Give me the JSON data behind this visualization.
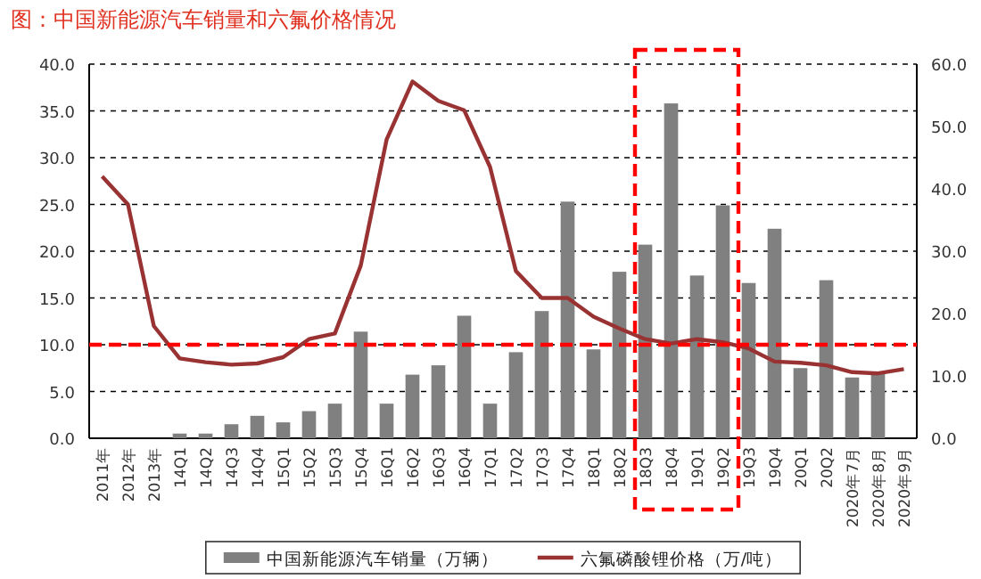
{
  "chart_data": {
    "type": "bar",
    "title": "图：中国新能源汽车销量和六氟价格情况",
    "categories": [
      "2011年",
      "2012年",
      "2013年",
      "14Q1",
      "14Q2",
      "14Q3",
      "14Q4",
      "15Q1",
      "15Q2",
      "15Q3",
      "15Q4",
      "16Q1",
      "16Q2",
      "16Q3",
      "16Q4",
      "17Q1",
      "17Q2",
      "17Q3",
      "17Q4",
      "18Q1",
      "18Q2",
      "18Q3",
      "18Q4",
      "19Q1",
      "19Q2",
      "19Q3",
      "19Q4",
      "20Q1",
      "20Q2",
      "2020年7月",
      "2020年8月",
      "2020年9月"
    ],
    "series": [
      {
        "name": "中国新能源汽车销量（万辆）",
        "color": "#808080",
        "values": [
          null,
          null,
          null,
          0.5,
          0.5,
          1.5,
          2.4,
          1.7,
          2.9,
          3.7,
          11.4,
          3.7,
          6.8,
          7.8,
          13.1,
          3.7,
          9.2,
          13.6,
          25.3,
          9.5,
          17.8,
          20.7,
          35.8,
          17.4,
          24.9,
          16.6,
          22.4,
          7.5,
          16.9,
          6.5,
          7.0,
          null
        ]
      },
      {
        "name": "六氟磷酸锂价格（万/吨）",
        "type": "line",
        "axis": "y2",
        "color": "#993333",
        "values": [
          42.0,
          37.5,
          18.0,
          12.8,
          12.2,
          11.8,
          12.0,
          13.0,
          15.9,
          16.8,
          27.7,
          47.9,
          57.2,
          54.1,
          52.6,
          43.5,
          26.8,
          22.5,
          22.5,
          19.5,
          17.6,
          15.9,
          15.2,
          15.9,
          15.4,
          14.4,
          12.3,
          12.1,
          11.7,
          10.6,
          10.4,
          11.1
        ]
      }
    ],
    "ylim": [
      0,
      40
    ],
    "yticks": [
      {
        "value": 0,
        "label": "0.0"
      },
      {
        "value": 5,
        "label": "5.0"
      },
      {
        "value": 10,
        "label": "10.0"
      },
      {
        "value": 15,
        "label": "15.0"
      },
      {
        "value": 20,
        "label": "20.0"
      },
      {
        "value": 25,
        "label": "25.0"
      },
      {
        "value": 30,
        "label": "30.0"
      },
      {
        "value": 35,
        "label": "35.0"
      },
      {
        "value": 40,
        "label": "40.0"
      }
    ],
    "y2lim": [
      0,
      60
    ],
    "y2ticks": [
      {
        "value": 0,
        "label": "0.0"
      },
      {
        "value": 10,
        "label": "10.0"
      },
      {
        "value": 20,
        "label": "20.0"
      },
      {
        "value": 30,
        "label": "30.0"
      },
      {
        "value": 40,
        "label": "40.0"
      },
      {
        "value": 50,
        "label": "50.0"
      },
      {
        "value": 60,
        "label": "60.0"
      }
    ],
    "ref_lines": [
      {
        "axis": "y",
        "value": 10,
        "color": "#ff0000",
        "line_style": "dashed"
      }
    ],
    "grid": "y",
    "legend": "bottom",
    "marker": "none",
    "line_style": "solid"
  }
}
